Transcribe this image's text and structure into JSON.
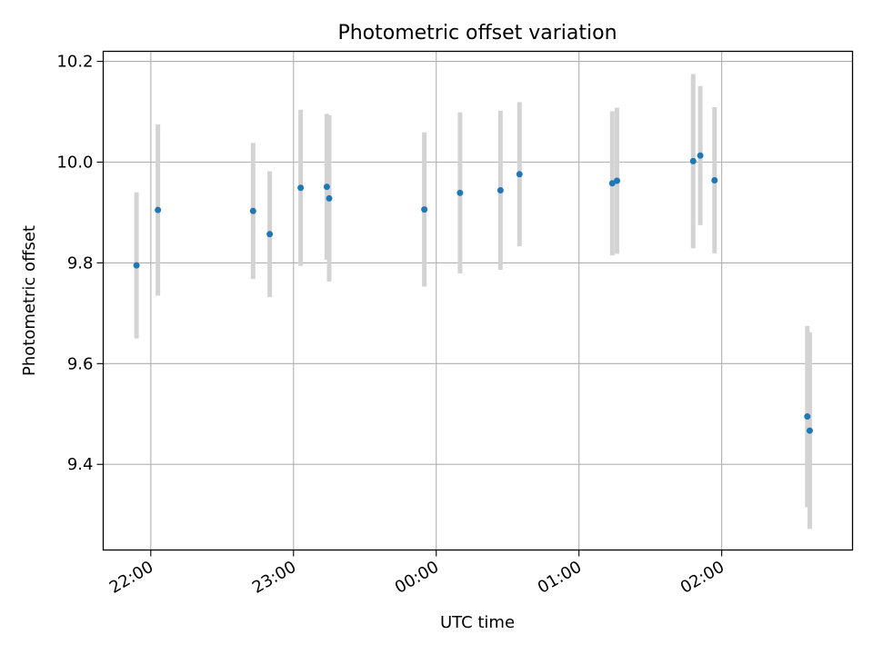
{
  "chart_data": {
    "type": "scatter",
    "title": "Photometric offset variation",
    "xlabel": "UTC time",
    "ylabel": "Photometric offset",
    "x_ticks": [
      "22:00",
      "23:00",
      "00:00",
      "01:00",
      "02:00"
    ],
    "y_ticks": [
      "9.4",
      "9.6",
      "9.8",
      "10.0",
      "10.2"
    ],
    "ylim": [
      9.23,
      10.22
    ],
    "xlim": [
      "21:40",
      "02:55"
    ],
    "grid": true,
    "colors": {
      "points": "#1f77b4",
      "errorbars": "#d3d3d3",
      "grid": "#b0b0b0"
    },
    "series": [
      {
        "points": [
          {
            "x": "21:54",
            "y": 9.795,
            "err": 0.145
          },
          {
            "x": "22:03",
            "y": 9.905,
            "err": 0.17
          },
          {
            "x": "22:43",
            "y": 9.903,
            "err": 0.135
          },
          {
            "x": "22:50",
            "y": 9.857,
            "err": 0.125
          },
          {
            "x": "23:03",
            "y": 9.949,
            "err": 0.155
          },
          {
            "x": "23:14",
            "y": 9.951,
            "err": 0.145
          },
          {
            "x": "23:15",
            "y": 9.928,
            "err": 0.165
          },
          {
            "x": "23:55",
            "y": 9.906,
            "err": 0.153
          },
          {
            "x": "00:10",
            "y": 9.939,
            "err": 0.16
          },
          {
            "x": "00:27",
            "y": 9.944,
            "err": 0.158
          },
          {
            "x": "00:35",
            "y": 9.976,
            "err": 0.143
          },
          {
            "x": "01:14",
            "y": 9.958,
            "err": 0.143
          },
          {
            "x": "01:16",
            "y": 9.963,
            "err": 0.145
          },
          {
            "x": "01:48",
            "y": 10.002,
            "err": 0.173
          },
          {
            "x": "01:51",
            "y": 10.013,
            "err": 0.138
          },
          {
            "x": "01:57",
            "y": 9.964,
            "err": 0.145
          },
          {
            "x": "02:36",
            "y": 9.495,
            "err": 0.18
          },
          {
            "x": "02:37",
            "y": 9.467,
            "err": 0.195
          }
        ]
      }
    ]
  }
}
